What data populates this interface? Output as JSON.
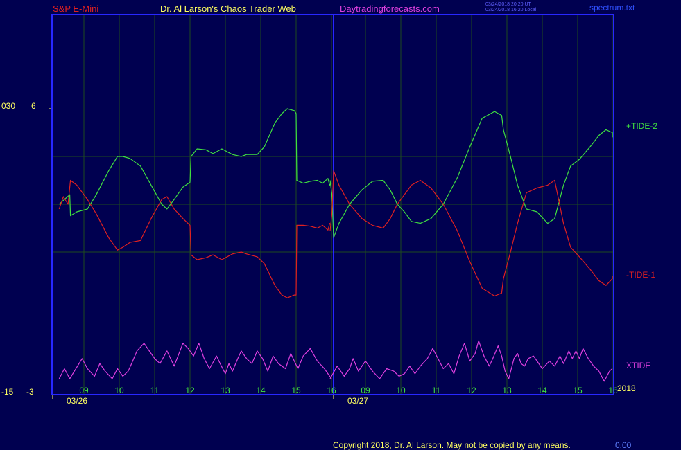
{
  "header": {
    "instrument": "S&P E-Mini",
    "site_title": "Dr. Al Larson's Chaos Trader Web",
    "site_url": "Daytradingforecasts.com",
    "timestamp_ut": "03/24/2018 20:20 UT",
    "timestamp_local": "03/24/2018 16:20 Local",
    "file_name": "spectrum.txt"
  },
  "left_scale": {
    "upper_left": "030",
    "upper_right": "6",
    "lower_left": "-15",
    "lower_right": "-3"
  },
  "series_labels": {
    "tide2": "+TIDE-2",
    "tide1": "-TIDE-1",
    "xtide": "XTIDE"
  },
  "year_label": "2018",
  "footer": {
    "copyright": "Copyright 2018, Dr. Al Larson. May not be copied by any means.",
    "corner": "0.00"
  },
  "colors": {
    "background": "#000050",
    "frame": "#2828ff",
    "grid": "#1e4a1e",
    "tide2": "#40e040",
    "tide1": "#e02020",
    "xtide": "#e040e0",
    "header_instrument": "#e02020",
    "header_title": "#ffff60",
    "header_url": "#e040e0",
    "axis_text": "#ffff60"
  },
  "chart_data": {
    "type": "line",
    "title": "S&P E-Mini",
    "x_unit": "hour",
    "x_domain": [
      8.3,
      16.2
    ],
    "dates": [
      "03/26",
      "03/27"
    ],
    "hour_ticks": [
      "09",
      "10",
      "11",
      "12",
      "13",
      "14",
      "15",
      "16",
      "09",
      "10",
      "11",
      "12",
      "13",
      "14",
      "15",
      "16"
    ],
    "main_panel": {
      "ylim": [
        -1.0,
        1.0
      ],
      "grid": true,
      "hlines": [
        -0.5,
        0.0,
        0.5
      ]
    },
    "lower_panel": {
      "ylim": [
        0,
        1.0
      ]
    },
    "series": [
      {
        "name": "+TIDE-2",
        "panel": "main",
        "points_day1": [
          [
            8.3,
            0.0
          ],
          [
            8.6,
            0.1
          ],
          [
            8.62,
            -0.12
          ],
          [
            8.8,
            -0.08
          ],
          [
            9.1,
            -0.05
          ],
          [
            9.35,
            0.1
          ],
          [
            9.7,
            0.35
          ],
          [
            9.95,
            0.5
          ],
          [
            10.1,
            0.5
          ],
          [
            10.3,
            0.48
          ],
          [
            10.6,
            0.4
          ],
          [
            10.9,
            0.2
          ],
          [
            11.2,
            0.0
          ],
          [
            11.35,
            -0.05
          ],
          [
            11.55,
            0.05
          ],
          [
            11.8,
            0.18
          ],
          [
            12.0,
            0.23
          ],
          [
            12.03,
            0.5
          ],
          [
            12.2,
            0.58
          ],
          [
            12.45,
            0.57
          ],
          [
            12.65,
            0.53
          ],
          [
            12.9,
            0.58
          ],
          [
            13.2,
            0.52
          ],
          [
            13.45,
            0.5
          ],
          [
            13.6,
            0.52
          ],
          [
            13.9,
            0.52
          ],
          [
            14.1,
            0.6
          ],
          [
            14.4,
            0.85
          ],
          [
            14.6,
            0.95
          ],
          [
            14.75,
            1.0
          ],
          [
            14.95,
            0.98
          ],
          [
            15.0,
            0.95
          ],
          [
            15.02,
            0.25
          ],
          [
            15.2,
            0.22
          ],
          [
            15.4,
            0.24
          ],
          [
            15.6,
            0.25
          ],
          [
            15.75,
            0.22
          ],
          [
            15.9,
            0.27
          ],
          [
            15.95,
            0.2
          ],
          [
            16.0,
            0.22
          ]
        ],
        "points_day2": [
          [
            8.0,
            0.25
          ],
          [
            8.05,
            0.1
          ],
          [
            8.1,
            -0.35
          ],
          [
            8.25,
            -0.2
          ],
          [
            8.55,
            0.0
          ],
          [
            8.9,
            0.15
          ],
          [
            9.2,
            0.24
          ],
          [
            9.5,
            0.25
          ],
          [
            9.7,
            0.15
          ],
          [
            9.9,
            0.0
          ],
          [
            10.1,
            -0.08
          ],
          [
            10.3,
            -0.18
          ],
          [
            10.55,
            -0.2
          ],
          [
            10.85,
            -0.15
          ],
          [
            11.2,
            0.0
          ],
          [
            11.6,
            0.28
          ],
          [
            11.95,
            0.6
          ],
          [
            12.3,
            0.9
          ],
          [
            12.65,
            0.97
          ],
          [
            12.85,
            0.93
          ],
          [
            12.9,
            0.78
          ],
          [
            13.1,
            0.5
          ],
          [
            13.3,
            0.2
          ],
          [
            13.55,
            -0.05
          ],
          [
            13.85,
            -0.08
          ],
          [
            14.15,
            -0.2
          ],
          [
            14.35,
            -0.15
          ],
          [
            14.6,
            0.2
          ],
          [
            14.8,
            0.4
          ],
          [
            15.05,
            0.47
          ],
          [
            15.35,
            0.6
          ],
          [
            15.6,
            0.72
          ],
          [
            15.8,
            0.78
          ],
          [
            16.0,
            0.75
          ],
          [
            16.05,
            0.7
          ]
        ]
      },
      {
        "name": "-TIDE-1",
        "panel": "main",
        "points_day1": [
          [
            8.3,
            -0.05
          ],
          [
            8.42,
            0.08
          ],
          [
            8.55,
            0.0
          ],
          [
            8.62,
            0.25
          ],
          [
            8.8,
            0.2
          ],
          [
            9.1,
            0.05
          ],
          [
            9.35,
            -0.1
          ],
          [
            9.7,
            -0.35
          ],
          [
            9.95,
            -0.48
          ],
          [
            10.1,
            -0.45
          ],
          [
            10.3,
            -0.4
          ],
          [
            10.6,
            -0.38
          ],
          [
            10.9,
            -0.15
          ],
          [
            11.2,
            0.05
          ],
          [
            11.35,
            0.08
          ],
          [
            11.55,
            -0.05
          ],
          [
            11.8,
            -0.15
          ],
          [
            12.0,
            -0.22
          ],
          [
            12.03,
            -0.53
          ],
          [
            12.2,
            -0.58
          ],
          [
            12.45,
            -0.56
          ],
          [
            12.65,
            -0.53
          ],
          [
            12.9,
            -0.58
          ],
          [
            13.2,
            -0.52
          ],
          [
            13.45,
            -0.5
          ],
          [
            13.6,
            -0.52
          ],
          [
            13.9,
            -0.55
          ],
          [
            14.1,
            -0.62
          ],
          [
            14.4,
            -0.85
          ],
          [
            14.6,
            -0.95
          ],
          [
            14.75,
            -0.98
          ],
          [
            14.95,
            -0.95
          ],
          [
            15.0,
            -0.95
          ],
          [
            15.02,
            -0.22
          ],
          [
            15.2,
            -0.22
          ],
          [
            15.4,
            -0.23
          ],
          [
            15.6,
            -0.25
          ],
          [
            15.75,
            -0.22
          ],
          [
            15.9,
            -0.27
          ],
          [
            15.95,
            -0.2
          ],
          [
            16.0,
            -0.22
          ]
        ],
        "points_day2": [
          [
            8.0,
            -0.28
          ],
          [
            8.05,
            -0.1
          ],
          [
            8.1,
            0.35
          ],
          [
            8.25,
            0.2
          ],
          [
            8.55,
            0.0
          ],
          [
            8.9,
            -0.15
          ],
          [
            9.2,
            -0.22
          ],
          [
            9.5,
            -0.25
          ],
          [
            9.7,
            -0.15
          ],
          [
            9.9,
            0.0
          ],
          [
            10.1,
            0.1
          ],
          [
            10.3,
            0.2
          ],
          [
            10.55,
            0.25
          ],
          [
            10.85,
            0.17
          ],
          [
            11.2,
            0.0
          ],
          [
            11.6,
            -0.28
          ],
          [
            11.95,
            -0.6
          ],
          [
            12.3,
            -0.88
          ],
          [
            12.65,
            -0.96
          ],
          [
            12.85,
            -0.93
          ],
          [
            12.9,
            -0.78
          ],
          [
            13.1,
            -0.5
          ],
          [
            13.3,
            -0.2
          ],
          [
            13.55,
            0.12
          ],
          [
            13.85,
            0.17
          ],
          [
            14.15,
            0.2
          ],
          [
            14.35,
            0.25
          ],
          [
            14.6,
            -0.2
          ],
          [
            14.8,
            -0.45
          ],
          [
            15.05,
            -0.55
          ],
          [
            15.35,
            -0.68
          ],
          [
            15.6,
            -0.8
          ],
          [
            15.8,
            -0.85
          ],
          [
            16.0,
            -0.78
          ],
          [
            16.05,
            -0.75
          ]
        ]
      },
      {
        "name": "XTIDE",
        "panel": "lower",
        "points_day1": [
          [
            8.3,
            0.15
          ],
          [
            8.45,
            0.35
          ],
          [
            8.6,
            0.15
          ],
          [
            8.8,
            0.38
          ],
          [
            8.95,
            0.55
          ],
          [
            9.1,
            0.35
          ],
          [
            9.3,
            0.2
          ],
          [
            9.45,
            0.45
          ],
          [
            9.6,
            0.3
          ],
          [
            9.8,
            0.15
          ],
          [
            9.95,
            0.35
          ],
          [
            10.1,
            0.2
          ],
          [
            10.25,
            0.3
          ],
          [
            10.35,
            0.45
          ],
          [
            10.5,
            0.7
          ],
          [
            10.7,
            0.85
          ],
          [
            10.85,
            0.7
          ],
          [
            11.0,
            0.55
          ],
          [
            11.15,
            0.45
          ],
          [
            11.35,
            0.7
          ],
          [
            11.55,
            0.4
          ],
          [
            11.8,
            0.85
          ],
          [
            11.95,
            0.75
          ],
          [
            12.1,
            0.6
          ],
          [
            12.25,
            0.85
          ],
          [
            12.4,
            0.55
          ],
          [
            12.55,
            0.35
          ],
          [
            12.75,
            0.6
          ],
          [
            12.85,
            0.45
          ],
          [
            13.0,
            0.25
          ],
          [
            13.1,
            0.45
          ],
          [
            13.2,
            0.3
          ],
          [
            13.35,
            0.55
          ],
          [
            13.45,
            0.7
          ],
          [
            13.6,
            0.55
          ],
          [
            13.75,
            0.45
          ],
          [
            13.9,
            0.7
          ],
          [
            14.05,
            0.55
          ],
          [
            14.2,
            0.3
          ],
          [
            14.35,
            0.6
          ],
          [
            14.5,
            0.45
          ],
          [
            14.7,
            0.35
          ],
          [
            14.85,
            0.65
          ],
          [
            15.05,
            0.35
          ],
          [
            15.2,
            0.6
          ],
          [
            15.4,
            0.75
          ],
          [
            15.6,
            0.5
          ],
          [
            15.8,
            0.35
          ],
          [
            15.95,
            0.2
          ],
          [
            16.0,
            0.15
          ]
        ],
        "points_day2": [
          [
            8.0,
            0.15
          ],
          [
            8.2,
            0.4
          ],
          [
            8.4,
            0.2
          ],
          [
            8.55,
            0.35
          ],
          [
            8.65,
            0.55
          ],
          [
            8.8,
            0.3
          ],
          [
            9.0,
            0.5
          ],
          [
            9.2,
            0.3
          ],
          [
            9.4,
            0.15
          ],
          [
            9.6,
            0.35
          ],
          [
            9.8,
            0.3
          ],
          [
            9.95,
            0.2
          ],
          [
            10.1,
            0.25
          ],
          [
            10.25,
            0.4
          ],
          [
            10.4,
            0.25
          ],
          [
            10.55,
            0.4
          ],
          [
            10.75,
            0.55
          ],
          [
            10.9,
            0.75
          ],
          [
            11.05,
            0.55
          ],
          [
            11.2,
            0.35
          ],
          [
            11.35,
            0.45
          ],
          [
            11.5,
            0.25
          ],
          [
            11.65,
            0.6
          ],
          [
            11.8,
            0.85
          ],
          [
            11.95,
            0.5
          ],
          [
            12.1,
            0.65
          ],
          [
            12.2,
            0.9
          ],
          [
            12.35,
            0.6
          ],
          [
            12.5,
            0.4
          ],
          [
            12.6,
            0.55
          ],
          [
            12.75,
            0.8
          ],
          [
            12.85,
            0.6
          ],
          [
            12.95,
            0.3
          ],
          [
            13.05,
            0.15
          ],
          [
            13.2,
            0.55
          ],
          [
            13.3,
            0.65
          ],
          [
            13.4,
            0.45
          ],
          [
            13.5,
            0.4
          ],
          [
            13.6,
            0.55
          ],
          [
            13.75,
            0.6
          ],
          [
            13.9,
            0.45
          ],
          [
            14.0,
            0.35
          ],
          [
            14.2,
            0.5
          ],
          [
            14.35,
            0.4
          ],
          [
            14.5,
            0.6
          ],
          [
            14.6,
            0.45
          ],
          [
            14.75,
            0.7
          ],
          [
            14.85,
            0.55
          ],
          [
            14.95,
            0.7
          ],
          [
            15.05,
            0.55
          ],
          [
            15.15,
            0.75
          ],
          [
            15.3,
            0.55
          ],
          [
            15.45,
            0.4
          ],
          [
            15.6,
            0.3
          ],
          [
            15.75,
            0.1
          ],
          [
            15.9,
            0.3
          ],
          [
            16.0,
            0.35
          ]
        ]
      }
    ]
  }
}
